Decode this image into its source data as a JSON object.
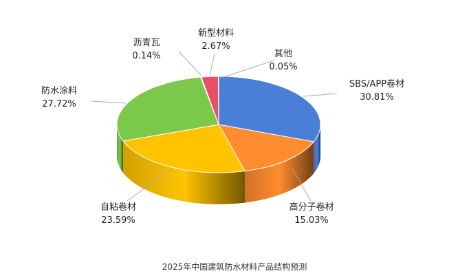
{
  "caption": "2025年中国建筑防水材料产品结构预测",
  "chart_data": {
    "type": "pie",
    "style": "3d",
    "unit": "%",
    "slices": [
      {
        "name": "SBS/APP卷材",
        "value": 30.81,
        "label": "30.81%",
        "color": "#4A7FD8"
      },
      {
        "name": "高分子卷材",
        "value": 15.03,
        "label": "15.03%",
        "color": "#FF8C2E"
      },
      {
        "name": "自粘卷材",
        "value": 23.59,
        "label": "23.59%",
        "color": "#FFC300"
      },
      {
        "name": "防水涂料",
        "value": 27.72,
        "label": "27.72%",
        "color": "#7CC84B"
      },
      {
        "name": "沥青瓦",
        "value": 0.14,
        "label": "0.14%",
        "color": "#9E9E9E"
      },
      {
        "name": "新型材料",
        "value": 2.67,
        "label": "2.67%",
        "color": "#E8506A"
      },
      {
        "name": "其他",
        "value": 0.05,
        "label": "0.05%",
        "color": "#5B9BD5"
      }
    ]
  }
}
